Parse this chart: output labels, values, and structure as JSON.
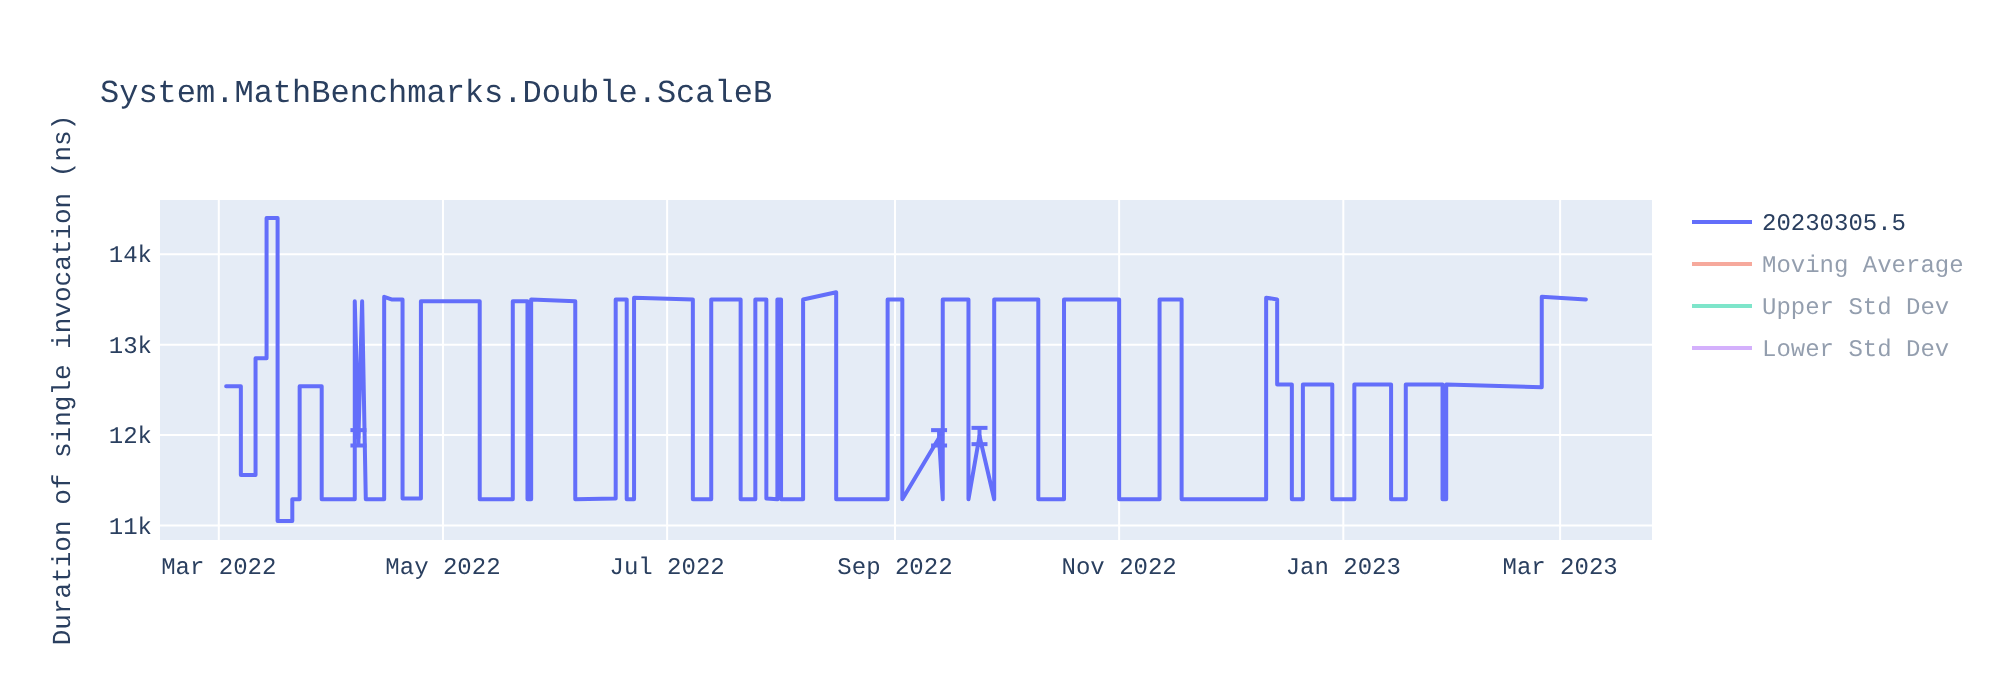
{
  "chart_data": {
    "type": "line",
    "title": "System.MathBenchmarks.Double.ScaleB",
    "ylabel": "Duration of single invocation (ns)",
    "xlim": [
      "2022-02-13",
      "2023-03-26"
    ],
    "xticks": [
      {
        "value": "2022-03-01",
        "label": "Mar 2022"
      },
      {
        "value": "2022-05-01",
        "label": "May 2022"
      },
      {
        "value": "2022-07-01",
        "label": "Jul 2022"
      },
      {
        "value": "2022-09-01",
        "label": "Sep 2022"
      },
      {
        "value": "2022-11-01",
        "label": "Nov 2022"
      },
      {
        "value": "2023-01-01",
        "label": "Jan 2023"
      },
      {
        "value": "2023-03-01",
        "label": "Mar 2023"
      }
    ],
    "ylim": [
      10840,
      14600
    ],
    "yticks": [
      {
        "value": 11000,
        "label": "11k"
      },
      {
        "value": 12000,
        "label": "12k"
      },
      {
        "value": 13000,
        "label": "13k"
      },
      {
        "value": 14000,
        "label": "14k"
      }
    ],
    "grid": true,
    "legend": "top right",
    "series": [
      {
        "name": "20230305.5",
        "color": "#636efa",
        "x": [
          "2022-03-03",
          "2022-03-07",
          "2022-03-07",
          "2022-03-11",
          "2022-03-11",
          "2022-03-14",
          "2022-03-14",
          "2022-03-17",
          "2022-03-17",
          "2022-03-21",
          "2022-03-21",
          "2022-03-23",
          "2022-03-23",
          "2022-03-29",
          "2022-03-29",
          "2022-04-07",
          "2022-04-07",
          "2022-04-08",
          "2022-04-09",
          "2022-04-10",
          "2022-04-15",
          "2022-04-15",
          "2022-04-17",
          "2022-04-20",
          "2022-04-20",
          "2022-04-25",
          "2022-04-25",
          "2022-05-11",
          "2022-05-11",
          "2022-05-20",
          "2022-05-20",
          "2022-05-24",
          "2022-05-24",
          "2022-05-25",
          "2022-05-25",
          "2022-06-06",
          "2022-06-06",
          "2022-06-17",
          "2022-06-17",
          "2022-06-20",
          "2022-06-20",
          "2022-06-22",
          "2022-06-22",
          "2022-07-08",
          "2022-07-08",
          "2022-07-13",
          "2022-07-13",
          "2022-07-21",
          "2022-07-21",
          "2022-07-25",
          "2022-07-25",
          "2022-07-28",
          "2022-07-28",
          "2022-07-31",
          "2022-07-31",
          "2022-08-01",
          "2022-08-01",
          "2022-08-07",
          "2022-08-07",
          "2022-08-16",
          "2022-08-16",
          "2022-08-30",
          "2022-08-30",
          "2022-09-03",
          "2022-09-03",
          "2022-09-13",
          "2022-09-14",
          "2022-09-14",
          "2022-09-21",
          "2022-09-21",
          "2022-09-24",
          "2022-09-28",
          "2022-09-28",
          "2022-10-10",
          "2022-10-10",
          "2022-10-17",
          "2022-10-17",
          "2022-11-01",
          "2022-11-01",
          "2022-11-12",
          "2022-11-12",
          "2022-11-18",
          "2022-11-18",
          "2022-12-11",
          "2022-12-11",
          "2022-12-14",
          "2022-12-14",
          "2022-12-18",
          "2022-12-18",
          "2022-12-21",
          "2022-12-21",
          "2022-12-29",
          "2022-12-29",
          "2023-01-04",
          "2023-01-04",
          "2023-01-14",
          "2023-01-14",
          "2023-01-18",
          "2023-01-18",
          "2023-01-28",
          "2023-01-28",
          "2023-01-29",
          "2023-01-29",
          "2023-02-24",
          "2023-02-24",
          "2023-03-08"
        ],
        "values": [
          12540,
          12540,
          11560,
          11560,
          12850,
          12850,
          14400,
          14400,
          11050,
          11050,
          11290,
          11290,
          12540,
          12540,
          11290,
          11290,
          13480,
          11970,
          13480,
          11290,
          11290,
          13530,
          13500,
          13500,
          11300,
          11300,
          13480,
          13480,
          11290,
          11290,
          13480,
          13480,
          11290,
          11290,
          13500,
          13480,
          11290,
          11300,
          13500,
          13500,
          11290,
          11290,
          13520,
          13500,
          11290,
          11290,
          13500,
          13500,
          11290,
          11290,
          13500,
          13500,
          11300,
          11290,
          13500,
          13500,
          11290,
          11290,
          13500,
          13580,
          11290,
          11290,
          13500,
          13500,
          11290,
          11970,
          11290,
          13500,
          13500,
          11290,
          11990,
          11290,
          13500,
          13500,
          11290,
          11290,
          13500,
          13500,
          11290,
          11290,
          13500,
          13500,
          11290,
          11290,
          13520,
          13500,
          12560,
          12560,
          11290,
          11290,
          12560,
          12560,
          11290,
          11290,
          12560,
          12560,
          11290,
          11290,
          12560,
          12560,
          11290,
          11290,
          12560,
          12530,
          13530,
          13500
        ],
        "errors": [
          null,
          null,
          null,
          null,
          null,
          null,
          null,
          null,
          null,
          null,
          null,
          null,
          null,
          null,
          null,
          null,
          null,
          85,
          null,
          null,
          null,
          null,
          null,
          null,
          null,
          null,
          null,
          null,
          null,
          null,
          null,
          null,
          null,
          null,
          null,
          null,
          null,
          null,
          null,
          null,
          null,
          null,
          null,
          null,
          null,
          null,
          null,
          null,
          null,
          null,
          null,
          null,
          null,
          null,
          null,
          null,
          null,
          null,
          null,
          null,
          null,
          null,
          null,
          null,
          null,
          85,
          null,
          null,
          null,
          null,
          90,
          null,
          null,
          null,
          null,
          null,
          null,
          null,
          null,
          null,
          null,
          null,
          null,
          null,
          null,
          null,
          null,
          null,
          null,
          null,
          null,
          null,
          null,
          null,
          null,
          null,
          null,
          null,
          null,
          null,
          null,
          null,
          null,
          null,
          null,
          null
        ]
      },
      {
        "name": "Moving Average",
        "color": "#ef553b"
      },
      {
        "name": "Upper Std Dev",
        "color": "#00cc96"
      },
      {
        "name": "Lower Std Dev",
        "color": "#ab63fa"
      }
    ]
  }
}
